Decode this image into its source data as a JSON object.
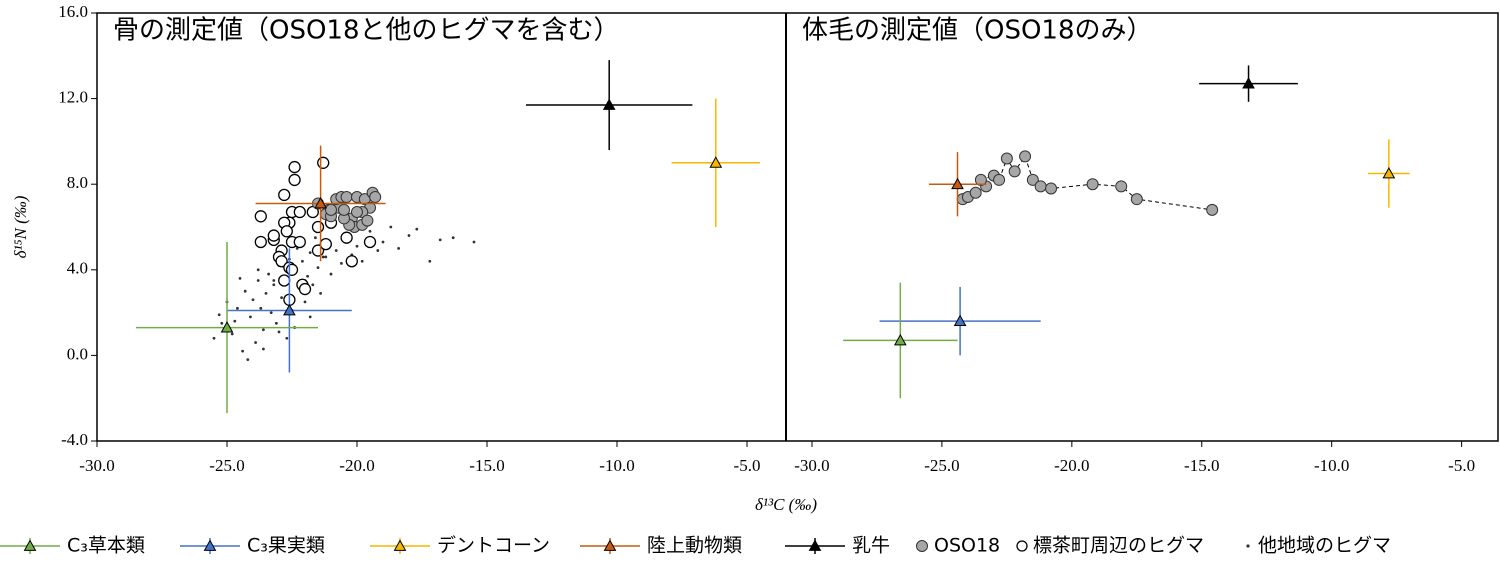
{
  "chart_data": [
    {
      "type": "scatter",
      "title": "骨の測定値（OSO18と他のヒグマを含む）",
      "xlabel": "δ¹³C (‰)",
      "ylabel": "δ¹⁵N (‰)",
      "xlim": [
        -30,
        -3.5
      ],
      "ylim": [
        -4,
        16
      ],
      "xticks": [
        {
          "value": -30,
          "label": "-30.0"
        },
        {
          "value": -25,
          "label": "-25.0"
        },
        {
          "value": -20,
          "label": "-20.0"
        },
        {
          "value": -15,
          "label": "-15.0"
        },
        {
          "value": -10,
          "label": "-10.0"
        },
        {
          "value": -5,
          "label": "-5.0"
        }
      ],
      "yticks": [
        {
          "value": -4,
          "label": "-4.0"
        },
        {
          "value": 0,
          "label": "0.0"
        },
        {
          "value": 4,
          "label": "4.0"
        },
        {
          "value": 8,
          "label": "8.0"
        },
        {
          "value": 12,
          "label": "12.0"
        },
        {
          "value": 16,
          "label": "16.0"
        }
      ],
      "series": [
        {
          "name": "C₃草本類",
          "color": "#70ad47",
          "marker": "errorbar-triangle",
          "x": [
            -25.0
          ],
          "y": [
            1.3
          ],
          "xerr": [
            3.5
          ],
          "yerr": [
            4.0
          ]
        },
        {
          "name": "C₃果実類",
          "color": "#4472c4",
          "marker": "errorbar-triangle",
          "x": [
            -22.6
          ],
          "y": [
            2.1
          ],
          "xerr": [
            2.4
          ],
          "yerr": [
            2.9
          ]
        },
        {
          "name": "デントコーン",
          "color": "#f5b700",
          "marker": "errorbar-triangle",
          "x": [
            -6.2
          ],
          "y": [
            9.0
          ],
          "xerr": [
            1.7
          ],
          "yerr": [
            3.0
          ]
        },
        {
          "name": "陸上動物類",
          "color": "#c55a11",
          "marker": "errorbar-triangle",
          "x": [
            -21.4
          ],
          "y": [
            7.1
          ],
          "xerr": [
            2.5
          ],
          "yerr": [
            2.7
          ]
        },
        {
          "name": "乳牛",
          "color": "#000000",
          "marker": "errorbar-triangle",
          "x": [
            -10.3
          ],
          "y": [
            11.7
          ],
          "xerr": [
            3.2
          ],
          "yerr": [
            2.1
          ]
        },
        {
          "name": "OSO18",
          "color": "#a6a6a6",
          "marker": "filled-circle",
          "x": [
            -20.7,
            -21.1,
            -21.2,
            -21.0,
            -20.7,
            -20.8,
            -20.6,
            -20.4,
            -20.0,
            -19.7,
            -19.5,
            -19.8,
            -20.2,
            -20.1,
            -19.8,
            -19.6,
            -19.4,
            -19.3,
            -20.3,
            -20.5,
            -21.5,
            -21.0,
            -20.5,
            -20.0
          ],
          "y": [
            7.1,
            6.8,
            6.6,
            6.5,
            6.9,
            7.3,
            7.4,
            7.4,
            7.4,
            7.3,
            6.9,
            6.7,
            6.4,
            6.0,
            6.1,
            6.3,
            7.6,
            7.4,
            6.1,
            6.4,
            7.1,
            6.8,
            6.8,
            6.7
          ]
        },
        {
          "name": "標茶町周辺のヒグマ",
          "color": "#000000",
          "marker": "open-circle",
          "x": [
            -22.4,
            -22.4,
            -21.3,
            -22.8,
            -23.7,
            -22.5,
            -22.6,
            -22.8,
            -22.2,
            -22.7,
            -23.2,
            -23.2,
            -22.5,
            -22.2,
            -22.9,
            -23.0,
            -22.9,
            -22.6,
            -22.5,
            -22.8,
            -22.1,
            -22.0,
            -22.6,
            -21.5,
            -21.5,
            -20.4,
            -19.5,
            -20.2,
            -21.0,
            -21.2,
            -21.7,
            -23.7
          ],
          "y": [
            8.8,
            8.2,
            9.0,
            7.5,
            6.5,
            6.7,
            6.2,
            6.2,
            6.7,
            5.8,
            5.4,
            5.6,
            5.3,
            5.3,
            4.9,
            4.6,
            4.4,
            4.1,
            4.0,
            3.5,
            3.3,
            3.1,
            2.6,
            4.9,
            6.0,
            5.5,
            5.3,
            4.4,
            6.2,
            5.2,
            6.7,
            5.3
          ]
        },
        {
          "name": "他地域のヒグマ",
          "color": "#333333",
          "marker": "dot",
          "x": [
            -25.5,
            -25.2,
            -25.0,
            -24.8,
            -24.6,
            -24.4,
            -24.3,
            -24.1,
            -24.0,
            -23.9,
            -23.8,
            -23.7,
            -23.6,
            -23.5,
            -23.4,
            -23.3,
            -23.2,
            -23.1,
            -23.0,
            -22.9,
            -22.8,
            -22.7,
            -22.6,
            -22.5,
            -22.4,
            -22.3,
            -22.2,
            -22.1,
            -22.0,
            -21.9,
            -21.8,
            -21.7,
            -21.6,
            -21.5,
            -21.4,
            -21.3,
            -21.2,
            -21.0,
            -20.8,
            -20.6,
            -20.4,
            -20.2,
            -20.0,
            -19.8,
            -19.5,
            -19.2,
            -19.0,
            -18.7,
            -18.4,
            -18.0,
            -17.7,
            -17.2,
            -16.8,
            -16.3,
            -15.5,
            -24.7,
            -24.2,
            -23.6,
            -23.0,
            -22.4,
            -21.8,
            -25.3,
            -24.5,
            -23.8,
            -23.2,
            -22.7,
            -22.0,
            -21.2,
            -20.5,
            -19.6
          ],
          "y": [
            0.8,
            1.5,
            2.5,
            1.0,
            2.2,
            0.2,
            3.0,
            1.8,
            2.6,
            0.6,
            3.5,
            2.2,
            1.2,
            2.9,
            3.8,
            2.0,
            3.3,
            1.5,
            4.2,
            2.7,
            3.6,
            0.8,
            4.5,
            2.1,
            3.9,
            5.0,
            3.1,
            4.4,
            2.5,
            3.7,
            4.8,
            3.3,
            5.5,
            4.1,
            2.9,
            4.6,
            5.2,
            3.8,
            4.9,
            4.3,
            5.6,
            4.7,
            5.1,
            4.4,
            5.8,
            4.9,
            5.3,
            6.0,
            5.0,
            5.6,
            5.9,
            4.4,
            5.4,
            5.5,
            5.3,
            1.6,
            -0.2,
            0.3,
            1.1,
            1.3,
            1.8,
            1.9,
            3.6,
            4.0,
            3.5,
            2.6,
            3.5,
            4.6,
            5.6,
            5.2
          ]
        }
      ]
    },
    {
      "type": "scatter",
      "title": "体毛の測定値（OSO18のみ）",
      "xlim": [
        -31,
        -3.6
      ],
      "ylim": [
        -4,
        16
      ],
      "xticks": [
        {
          "value": -30,
          "label": "-30.0"
        },
        {
          "value": -25,
          "label": "-25.0"
        },
        {
          "value": -20,
          "label": "-20.0"
        },
        {
          "value": -15,
          "label": "-15.0"
        },
        {
          "value": -10,
          "label": "-10.0"
        },
        {
          "value": -5,
          "label": "-5.0"
        }
      ],
      "series": [
        {
          "color": "#70ad47",
          "marker": "errorbar-triangle",
          "x": [
            -26.6
          ],
          "y": [
            0.7
          ],
          "xerr": [
            2.2
          ],
          "yerr": [
            2.7
          ]
        },
        {
          "color": "#4472c4",
          "marker": "errorbar-triangle",
          "x": [
            -24.3
          ],
          "y": [
            1.6
          ],
          "xerr": [
            3.1
          ],
          "yerr": [
            1.6
          ]
        },
        {
          "color": "#f5b700",
          "marker": "errorbar-triangle",
          "x": [
            -7.8
          ],
          "y": [
            8.5
          ],
          "xerr": [
            0.8
          ],
          "yerr": [
            1.6
          ]
        },
        {
          "color": "#c55a11",
          "marker": "errorbar-triangle",
          "x": [
            -24.4
          ],
          "y": [
            8.0
          ],
          "xerr": [
            1.1
          ],
          "yerr": [
            1.5
          ]
        },
        {
          "color": "#000000",
          "marker": "errorbar-triangle",
          "x": [
            -13.2
          ],
          "y": [
            12.7
          ],
          "xerr": [
            1.9
          ],
          "yerr": [
            0.85
          ]
        },
        {
          "color": "#a6a6a6",
          "marker": "filled-circle",
          "line": "dashed",
          "x": [
            -24.2,
            -24.0,
            -23.7,
            -23.3,
            -23.5,
            -23.0,
            -22.8,
            -22.5,
            -22.2,
            -21.8,
            -21.5,
            -21.2,
            -20.8,
            -19.2,
            -18.1,
            -17.5,
            -14.6
          ],
          "y": [
            7.3,
            7.4,
            7.6,
            7.9,
            8.2,
            8.4,
            8.2,
            9.2,
            8.6,
            9.3,
            8.2,
            7.9,
            7.8,
            8.0,
            7.9,
            7.3,
            6.8
          ]
        }
      ]
    }
  ]
}
